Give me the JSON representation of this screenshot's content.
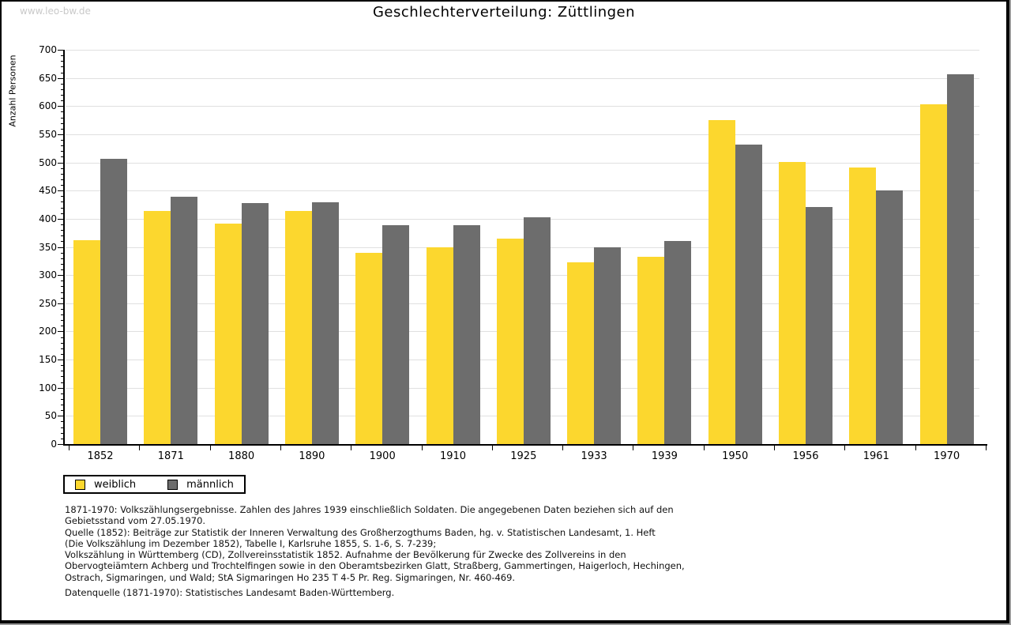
{
  "watermark": "www.leo-bw.de",
  "title": "Geschlechterverteilung: Züttlingen",
  "chart_data": {
    "type": "bar",
    "title": "Geschlechterverteilung: Züttlingen",
    "xlabel": "",
    "ylabel": "Anzahl Personen",
    "ylim": [
      0,
      700
    ],
    "ytick_step": 50,
    "ytick_minor_step": 10,
    "grid": true,
    "gridline_color": "#e0e0e0",
    "legend_position": "bottom-left",
    "categories": [
      "1852",
      "1871",
      "1880",
      "1890",
      "1900",
      "1910",
      "1925",
      "1933",
      "1939",
      "1950",
      "1956",
      "1961",
      "1970"
    ],
    "series": [
      {
        "name": "weiblich",
        "color": "#FCD72E",
        "values": [
          362,
          414,
          391,
          414,
          340,
          350,
          365,
          323,
          333,
          575,
          501,
          491,
          603
        ]
      },
      {
        "name": "männlich",
        "color": "#6D6D6D",
        "values": [
          506,
          439,
          428,
          429,
          388,
          388,
          403,
          350,
          360,
          532,
          421,
          450,
          656
        ]
      }
    ]
  },
  "footnotes": [
    "1871-1970: Volkszählungsergebnisse. Zahlen des Jahres 1939 einschließlich Soldaten. Die angegebenen Daten beziehen sich auf den",
    "Gebietsstand vom 27.05.1970.",
    "Quelle (1852): Beiträge zur Statistik der Inneren Verwaltung des Großherzogthums Baden, hg. v. Statistischen Landesamt, 1. Heft",
    "(Die Volkszählung im Dezember 1852), Tabelle I, Karlsruhe 1855, S. 1-6, S. 7-239;",
    "Volkszählung in Württemberg (CD), Zollvereinsstatistik 1852. Aufnahme der Bevölkerung für Zwecke des Zollvereins in den",
    "Obervogteiämtern Achberg und Trochtelfingen sowie in den Oberamtsbezirken Glatt, Straßberg, Gammertingen, Haigerloch, Hechingen,",
    "Ostrach, Sigmaringen, und Wald; StA Sigmaringen Ho 235 T 4-5 Pr. Reg. Sigmaringen, Nr. 460-469."
  ],
  "datasource": "Datenquelle (1871-1970): Statistisches Landesamt Baden-Württemberg."
}
